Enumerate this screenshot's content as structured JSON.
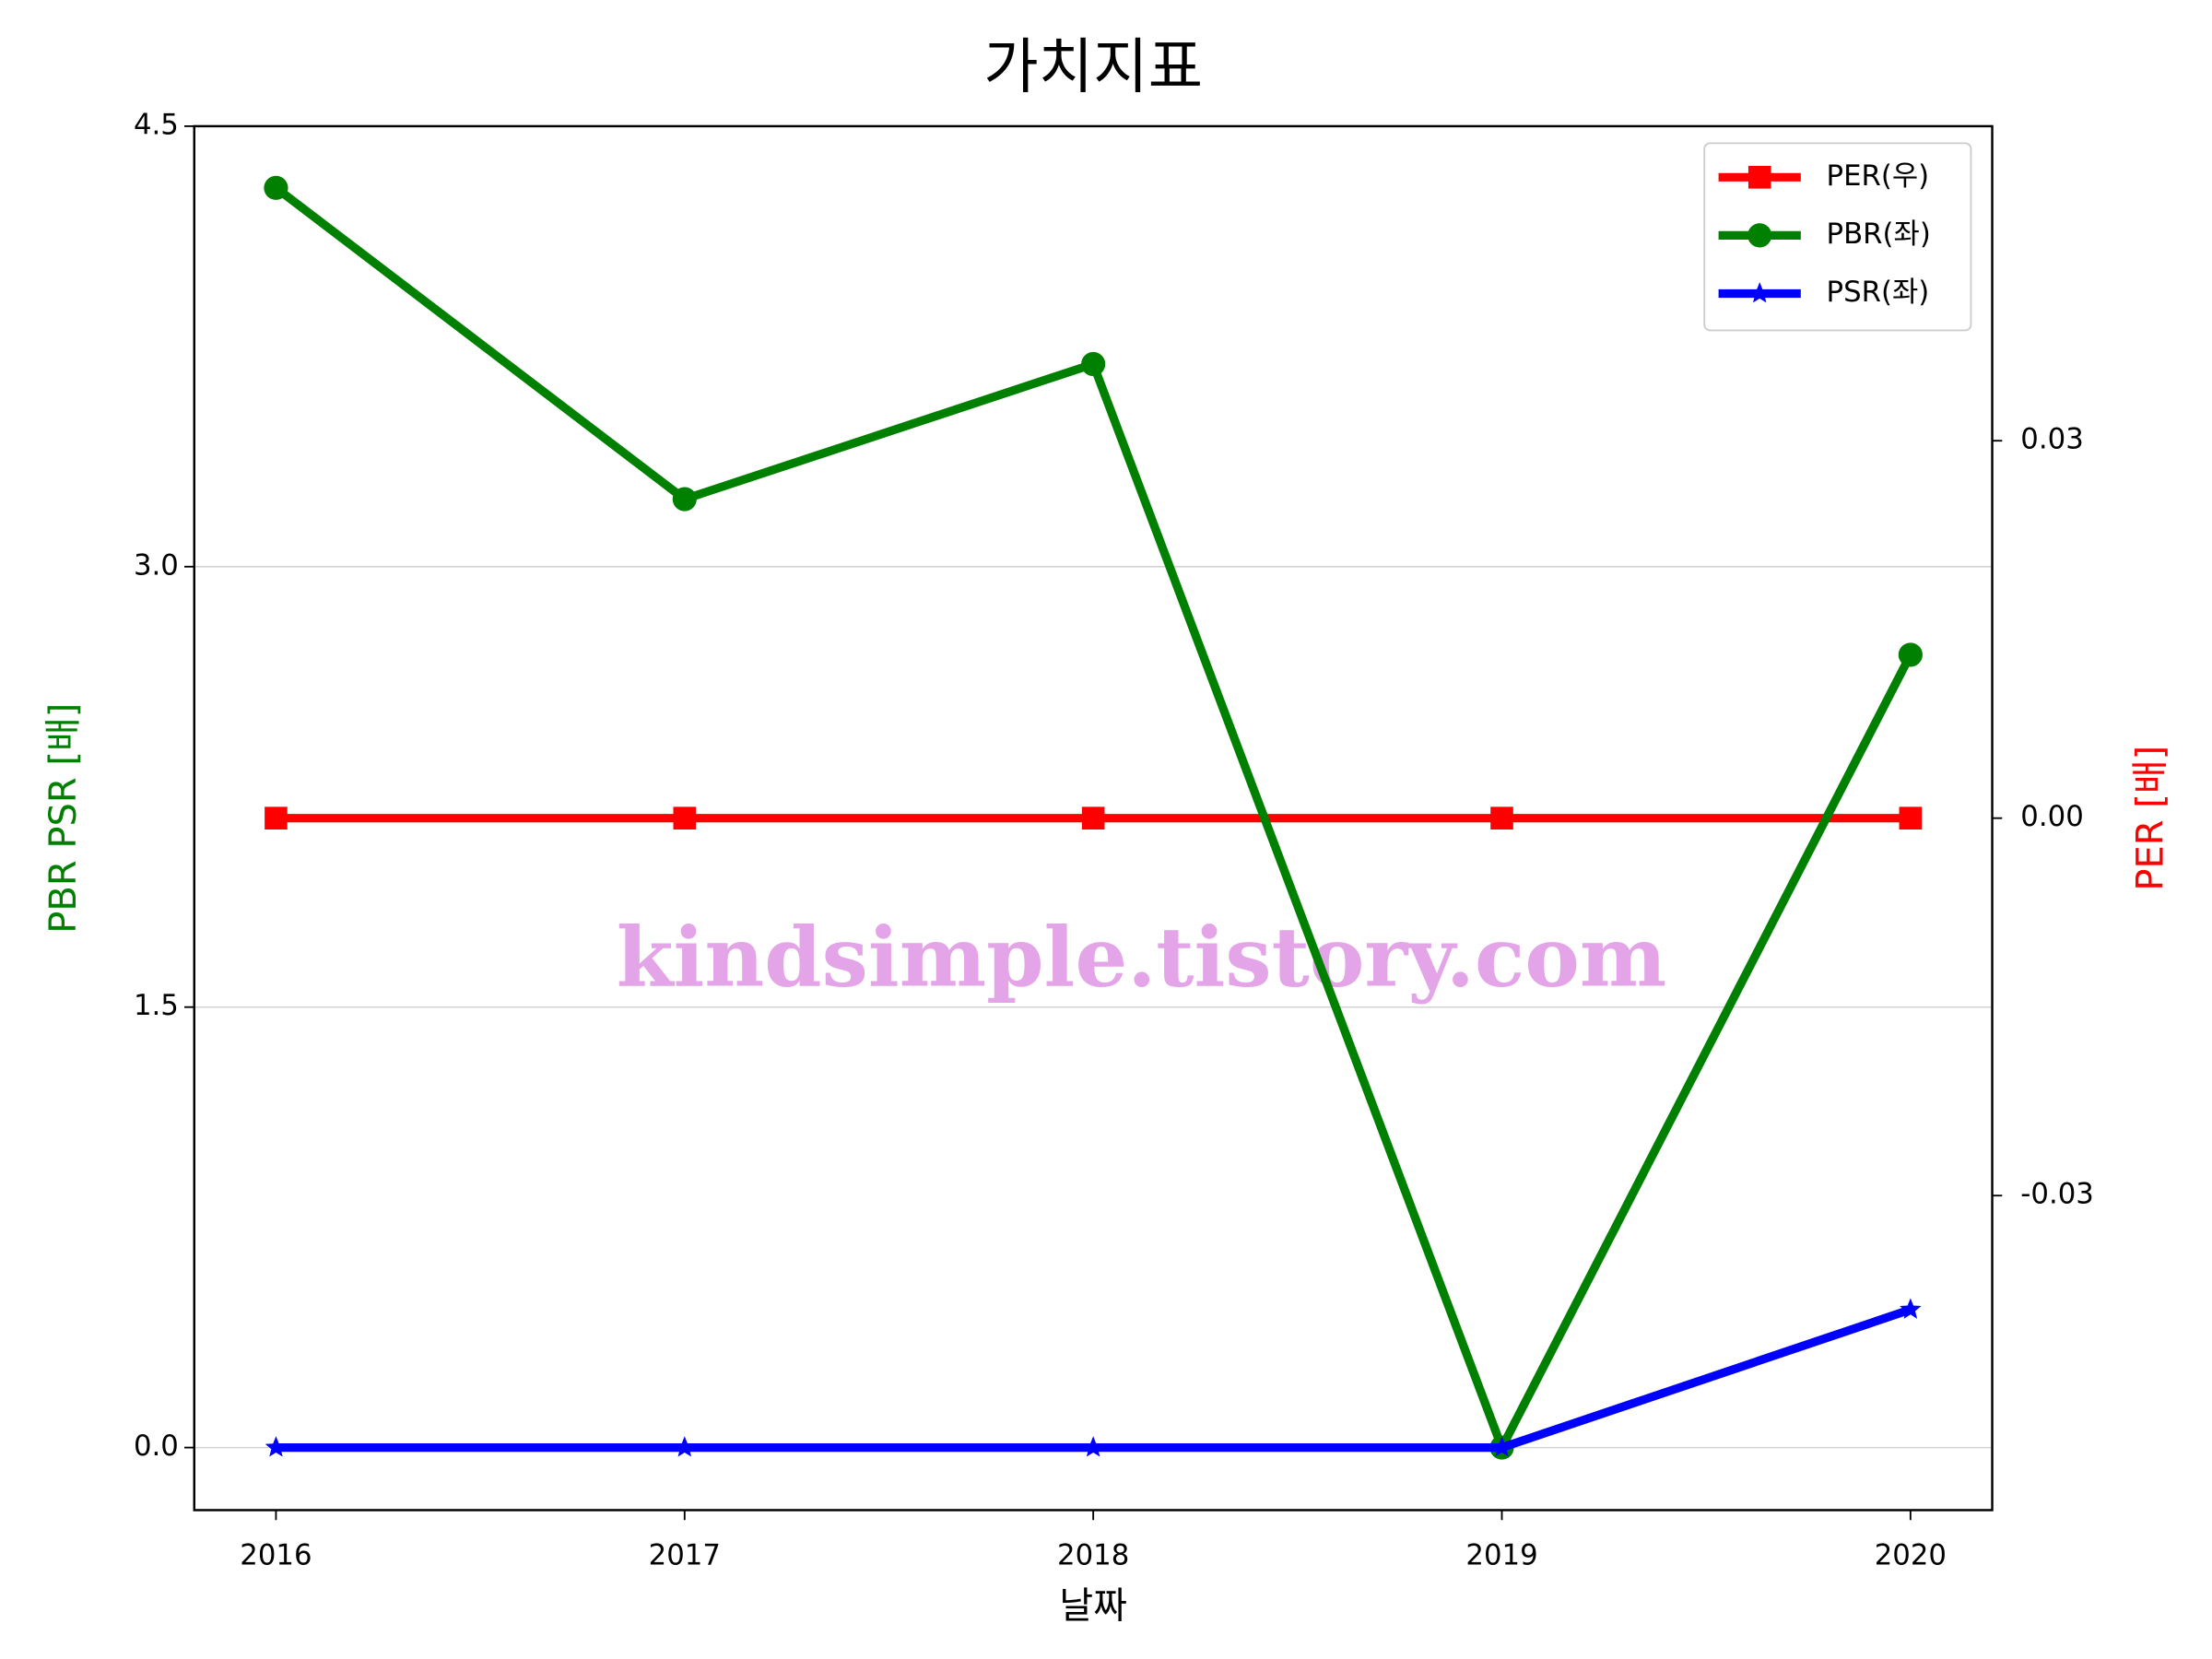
{
  "chart_data": {
    "type": "line",
    "title": "가치지표",
    "xlabel": "날짜",
    "ylabel": "PBR PSR [배]",
    "y2label": "PER [배]",
    "watermark": "kindsimple.tistory.com",
    "x": [
      2016,
      2017,
      2018,
      2019,
      2020
    ],
    "xlim": [
      2015.8,
      2020.2
    ],
    "xticks": [
      2016,
      2017,
      2018,
      2019,
      2020
    ],
    "ylim": [
      -0.213,
      4.5
    ],
    "yticks": [
      {
        "value": 0,
        "label": "0.0"
      },
      {
        "value": 1.5,
        "label": "1.5"
      },
      {
        "value": 3,
        "label": "3.0"
      },
      {
        "value": 4.5,
        "label": "4.5"
      }
    ],
    "y2lim": [
      -0.055,
      0.055
    ],
    "y2ticks": [
      {
        "value": -0.03,
        "label": "-0.03"
      },
      {
        "value": 0,
        "label": "0.00"
      },
      {
        "value": 0.03,
        "label": "0.03"
      }
    ],
    "grid": true,
    "legend": "upper right",
    "series": [
      {
        "name": "PER(우)",
        "color": "#ff0000",
        "marker": "square",
        "axis": "y2",
        "values": [
          0,
          0,
          0,
          0,
          0
        ]
      },
      {
        "name": "PBR(좌)",
        "color": "#008000",
        "marker": "circle",
        "values": [
          4.29,
          3.23,
          3.69,
          0,
          2.7
        ]
      },
      {
        "name": "PSR(좌)",
        "color": "#0000ff",
        "marker": "star",
        "values": [
          0,
          0,
          0,
          0,
          0.47
        ]
      }
    ]
  }
}
